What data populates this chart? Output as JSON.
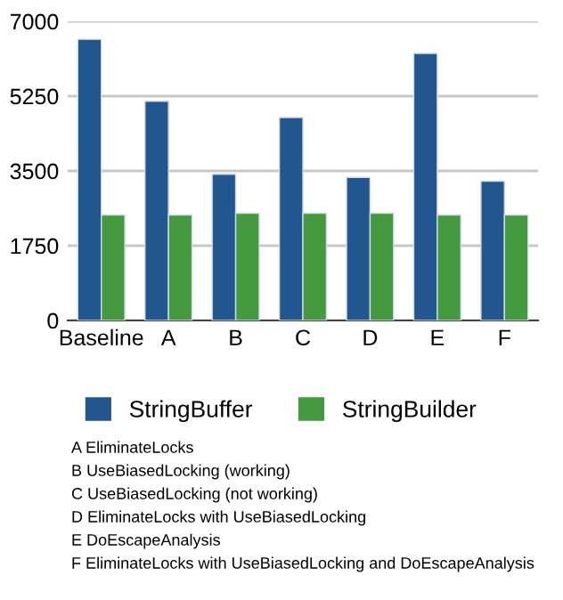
{
  "chart_data": {
    "type": "bar",
    "categories": [
      "Baseline",
      "A",
      "B",
      "C",
      "D",
      "E",
      "F"
    ],
    "series": [
      {
        "name": "StringBuffer",
        "color": "#22568f",
        "values": [
          6580,
          5130,
          3420,
          4750,
          3350,
          6250,
          3260
        ]
      },
      {
        "name": "StringBuilder",
        "color": "#459a3f",
        "values": [
          2470,
          2470,
          2510,
          2510,
          2510,
          2470,
          2470
        ]
      }
    ],
    "ylim": [
      0,
      7000
    ],
    "yticks": [
      0,
      1750,
      3500,
      5250,
      7000
    ],
    "grid": "y",
    "legend": "bottom",
    "annotations": [
      "A EliminateLocks",
      "B UseBiasedLocking (working)",
      "C UseBiasedLocking (not working)",
      "D EliminateLocks with UseBiasedLocking",
      "E DoEscapeAnalysis",
      "F EliminateLocks with UseBiasedLocking and DoEscapeAnalysis"
    ]
  }
}
